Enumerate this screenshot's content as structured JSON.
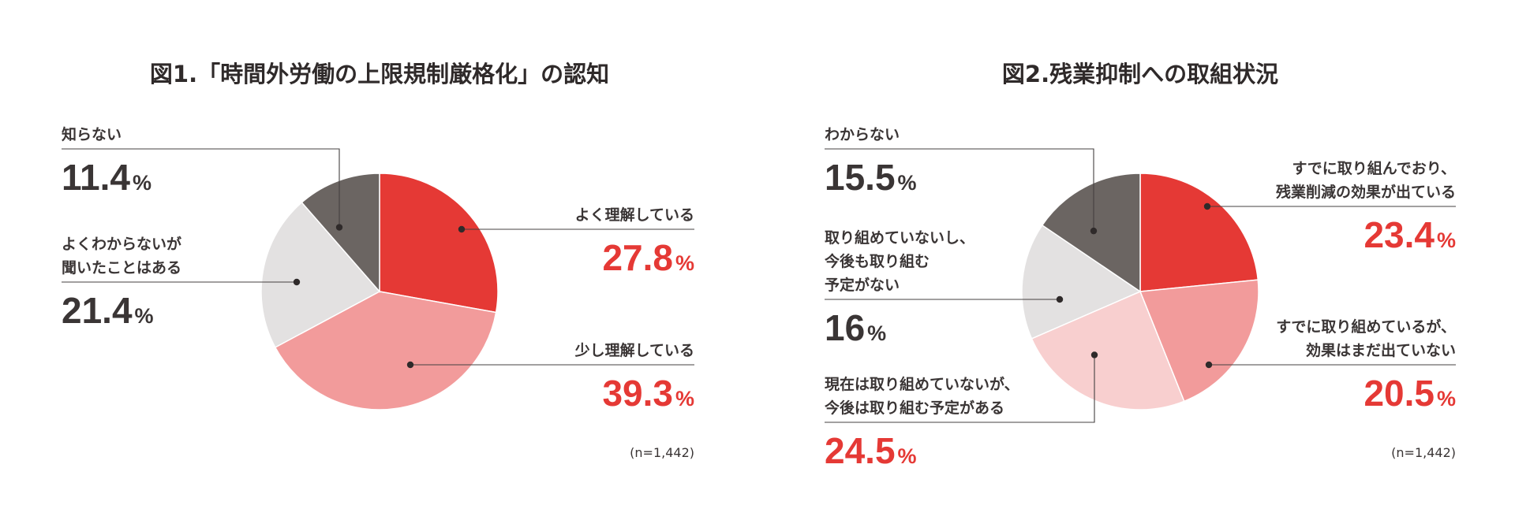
{
  "chart_data": [
    {
      "type": "pie",
      "title": "図1.「時間外労働の上限規制厳格化」の認知",
      "sample_note": "(n=1,442)",
      "start": "12 o'clock",
      "direction": "clockwise",
      "slices": [
        {
          "label": "よく理解している",
          "value": 27.8,
          "display": "27.8",
          "unit": "%",
          "color": "#e53935"
        },
        {
          "label": "少し理解している",
          "value": 39.3,
          "display": "39.3",
          "unit": "%",
          "color": "#f29b9b"
        },
        {
          "label": "よくわからないが\n聞いたことはある",
          "value": 21.4,
          "display": "21.4",
          "unit": "%",
          "color": "#e3e1e1"
        },
        {
          "label": "知らない",
          "value": 11.4,
          "display": "11.4",
          "unit": "%",
          "color": "#6b6562"
        }
      ]
    },
    {
      "type": "pie",
      "title": "図2.残業抑制への取組状況",
      "sample_note": "(n=1,442)",
      "start": "12 o'clock",
      "direction": "clockwise",
      "slices": [
        {
          "label": "すでに取り組んでおり、\n残業削減の効果が出ている",
          "value": 23.4,
          "display": "23.4",
          "unit": "%",
          "color": "#e53935"
        },
        {
          "label": "すでに取り組めているが、\n効果はまだ出ていない",
          "value": 20.5,
          "display": "20.5",
          "unit": "%",
          "color": "#f29b9b"
        },
        {
          "label": "現在は取り組めていないが、\n今後は取り組む予定がある",
          "value": 24.5,
          "display": "24.5",
          "unit": "%",
          "color": "#f8cfcf"
        },
        {
          "label": "取り組めていないし、\n今後も取り組む\n予定がない",
          "value": 16,
          "display": "16",
          "unit": "%",
          "color": "#e3e1e1"
        },
        {
          "label": "わからない",
          "value": 15.5,
          "display": "15.5",
          "unit": "%",
          "color": "#6b6562"
        }
      ]
    }
  ]
}
